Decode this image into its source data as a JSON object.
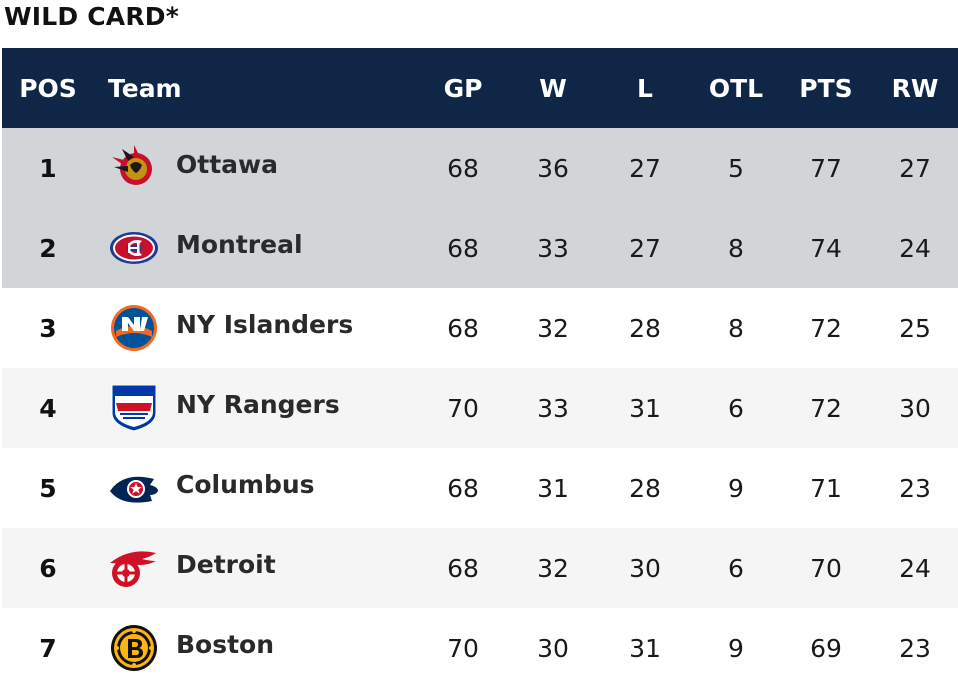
{
  "title": "WILD CARD*",
  "columns": {
    "pos": "POS",
    "team": "Team",
    "gp": "GP",
    "w": "W",
    "l": "L",
    "otl": "OTL",
    "pts": "PTS",
    "rw": "RW"
  },
  "rows": [
    {
      "pos": "1",
      "team": "Ottawa",
      "logo": "ottawa-senators-logo-icon",
      "gp": "68",
      "w": "36",
      "l": "27",
      "otl": "5",
      "pts": "77",
      "rw": "27"
    },
    {
      "pos": "2",
      "team": "Montreal",
      "logo": "montreal-canadiens-logo-icon",
      "gp": "68",
      "w": "33",
      "l": "27",
      "otl": "8",
      "pts": "74",
      "rw": "24"
    },
    {
      "pos": "3",
      "team": "NY Islanders",
      "logo": "ny-islanders-logo-icon",
      "gp": "68",
      "w": "32",
      "l": "28",
      "otl": "8",
      "pts": "72",
      "rw": "25"
    },
    {
      "pos": "4",
      "team": "NY Rangers",
      "logo": "ny-rangers-logo-icon",
      "gp": "70",
      "w": "33",
      "l": "31",
      "otl": "6",
      "pts": "72",
      "rw": "30"
    },
    {
      "pos": "5",
      "team": "Columbus",
      "logo": "columbus-blue-jackets-logo-icon",
      "gp": "68",
      "w": "31",
      "l": "28",
      "otl": "9",
      "pts": "71",
      "rw": "23"
    },
    {
      "pos": "6",
      "team": "Detroit",
      "logo": "detroit-red-wings-logo-icon",
      "gp": "68",
      "w": "32",
      "l": "30",
      "otl": "6",
      "pts": "70",
      "rw": "24"
    },
    {
      "pos": "7",
      "team": "Boston",
      "logo": "boston-bruins-logo-icon",
      "gp": "70",
      "w": "30",
      "l": "31",
      "otl": "9",
      "pts": "69",
      "rw": "23"
    }
  ],
  "colors": {
    "header_bg": "#0f2647",
    "highlight_bg": "#d1d5d8",
    "alt_bg": "#f5f5f5"
  }
}
